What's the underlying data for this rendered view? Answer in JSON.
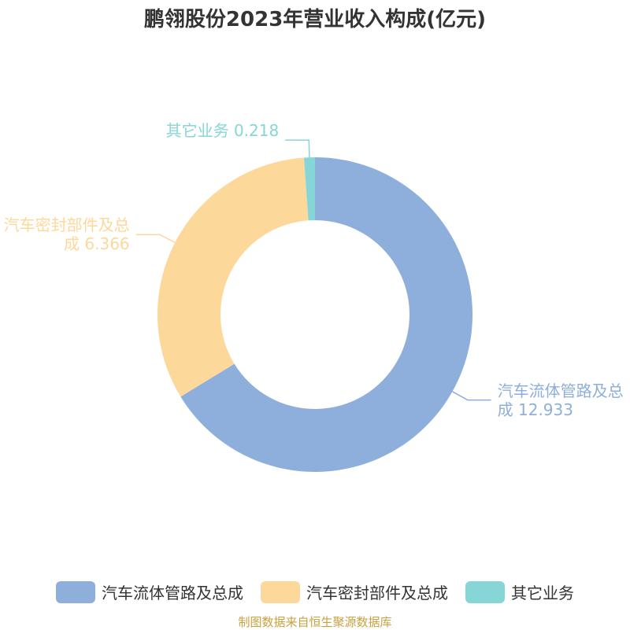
{
  "chart_data": {
    "type": "donut",
    "title": "鹏翎股份2023年营业收入构成(亿元)",
    "categories": [
      "汽车流体管路及总成",
      "汽车密封部件及总成",
      "其它业务"
    ],
    "values": [
      12.933,
      6.366,
      0.218
    ],
    "colors": [
      "#8eaedb",
      "#fdd89b",
      "#86d6d8"
    ],
    "legend": "bottom",
    "source": "制图数据来自恒生聚源数据库"
  }
}
